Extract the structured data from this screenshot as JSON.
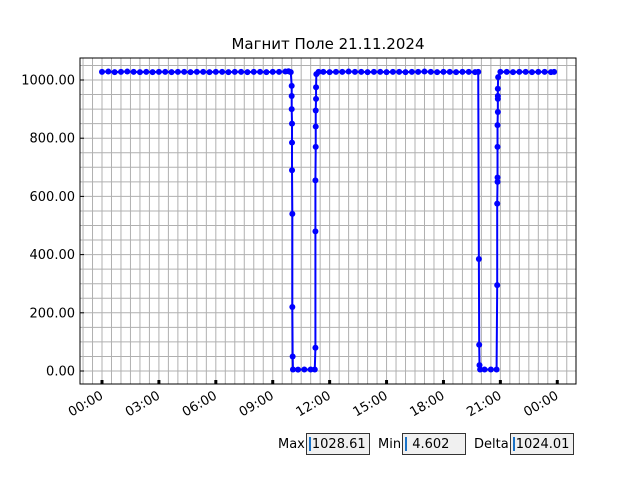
{
  "chart_data": {
    "type": "line",
    "title": "Магнит Поле 21.11.2024",
    "xlabel": "",
    "ylabel": "",
    "xlim": [
      "-00:53",
      "01:05+1"
    ],
    "ylim": [
      -45,
      1078
    ],
    "x_ticks": [
      "00:00",
      "03:00",
      "06:00",
      "09:00",
      "12:00",
      "15:00",
      "18:00",
      "21:00",
      "00:00"
    ],
    "y_ticks": [
      "0.00",
      "200.00",
      "400.00",
      "600.00",
      "800.00",
      "1000.00"
    ],
    "grid": true,
    "marker": "circle",
    "color": "#0000ff",
    "points": [
      [
        "00:00",
        1028
      ],
      [
        "00:20",
        1029
      ],
      [
        "00:40",
        1027
      ],
      [
        "01:00",
        1028
      ],
      [
        "01:20",
        1029
      ],
      [
        "01:40",
        1028
      ],
      [
        "02:00",
        1027
      ],
      [
        "02:20",
        1028
      ],
      [
        "02:40",
        1027
      ],
      [
        "03:00",
        1028
      ],
      [
        "03:20",
        1028
      ],
      [
        "03:40",
        1027
      ],
      [
        "04:00",
        1028
      ],
      [
        "04:20",
        1028
      ],
      [
        "04:40",
        1027
      ],
      [
        "05:00",
        1028
      ],
      [
        "05:20",
        1028
      ],
      [
        "05:40",
        1027
      ],
      [
        "06:00",
        1028
      ],
      [
        "06:20",
        1028
      ],
      [
        "06:40",
        1027
      ],
      [
        "07:00",
        1028
      ],
      [
        "07:20",
        1028
      ],
      [
        "07:40",
        1027
      ],
      [
        "08:00",
        1028
      ],
      [
        "08:20",
        1028
      ],
      [
        "08:40",
        1027
      ],
      [
        "09:00",
        1028
      ],
      [
        "09:20",
        1028
      ],
      [
        "09:40",
        1029
      ],
      [
        "09:50",
        1030
      ],
      [
        "09:57",
        1027
      ],
      [
        "10:00",
        980
      ],
      [
        "10:00",
        945
      ],
      [
        "10:00",
        900
      ],
      [
        "10:01",
        850
      ],
      [
        "10:01",
        785
      ],
      [
        "10:01",
        690
      ],
      [
        "10:02",
        540
      ],
      [
        "10:02",
        220
      ],
      [
        "10:03",
        50
      ],
      [
        "10:04",
        5
      ],
      [
        "10:20",
        4.6
      ],
      [
        "10:40",
        5
      ],
      [
        "11:00",
        5
      ],
      [
        "11:13",
        5
      ],
      [
        "11:15",
        80
      ],
      [
        "11:15",
        480
      ],
      [
        "11:15",
        655
      ],
      [
        "11:16",
        770
      ],
      [
        "11:16",
        840
      ],
      [
        "11:16",
        895
      ],
      [
        "11:17",
        935
      ],
      [
        "11:17",
        975
      ],
      [
        "11:18",
        1020
      ],
      [
        "11:25",
        1028
      ],
      [
        "11:40",
        1028
      ],
      [
        "12:00",
        1027
      ],
      [
        "12:20",
        1028
      ],
      [
        "12:40",
        1028
      ],
      [
        "13:00",
        1029
      ],
      [
        "13:20",
        1028
      ],
      [
        "13:40",
        1028
      ],
      [
        "14:00",
        1027
      ],
      [
        "14:20",
        1028
      ],
      [
        "14:40",
        1028
      ],
      [
        "15:00",
        1027
      ],
      [
        "15:20",
        1028
      ],
      [
        "15:40",
        1028
      ],
      [
        "16:00",
        1027
      ],
      [
        "16:20",
        1028
      ],
      [
        "16:40",
        1028
      ],
      [
        "17:00",
        1029
      ],
      [
        "17:20",
        1028
      ],
      [
        "17:40",
        1027
      ],
      [
        "18:00",
        1028
      ],
      [
        "18:20",
        1028
      ],
      [
        "18:40",
        1027
      ],
      [
        "19:00",
        1028
      ],
      [
        "19:20",
        1028
      ],
      [
        "19:40",
        1027
      ],
      [
        "19:50",
        1028
      ],
      [
        "19:52",
        385
      ],
      [
        "19:53",
        90
      ],
      [
        "19:54",
        20
      ],
      [
        "19:56",
        5
      ],
      [
        "20:10",
        5
      ],
      [
        "20:30",
        5
      ],
      [
        "20:48",
        5
      ],
      [
        "20:50",
        295
      ],
      [
        "20:50",
        575
      ],
      [
        "20:51",
        650
      ],
      [
        "20:51",
        665
      ],
      [
        "20:51",
        770
      ],
      [
        "20:51",
        845
      ],
      [
        "20:52",
        890
      ],
      [
        "20:52",
        935
      ],
      [
        "20:52",
        945
      ],
      [
        "20:52",
        970
      ],
      [
        "20:53",
        1010
      ],
      [
        "21:00",
        1028
      ],
      [
        "21:20",
        1028
      ],
      [
        "21:40",
        1027
      ],
      [
        "22:00",
        1028
      ],
      [
        "22:20",
        1028
      ],
      [
        "22:40",
        1027
      ],
      [
        "23:00",
        1028
      ],
      [
        "23:20",
        1028
      ],
      [
        "23:40",
        1027
      ],
      [
        "23:50",
        1028
      ]
    ]
  },
  "stats": {
    "max_label": "Max",
    "max_value": "1028.61",
    "min_label": "Min",
    "min_value": " 4.602",
    "delta_label": "Delta",
    "delta_value": "1024.01"
  }
}
